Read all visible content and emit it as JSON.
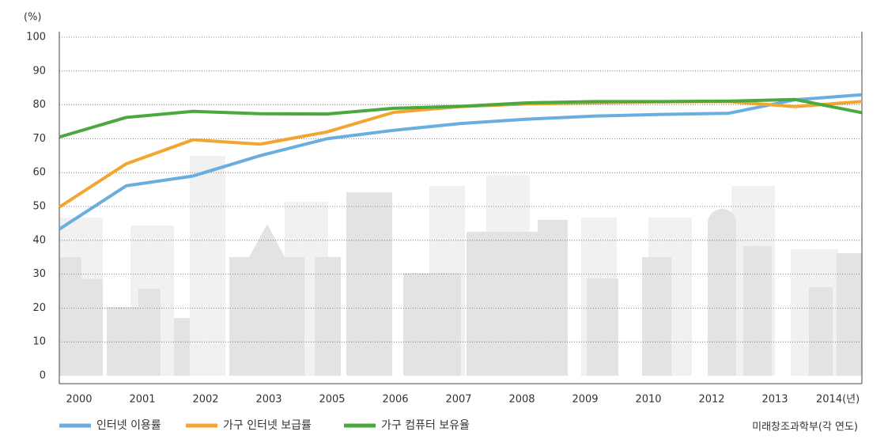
{
  "chart_data": {
    "type": "line",
    "y_label": "(%)",
    "categories": [
      "2000",
      "2001",
      "2002",
      "2003",
      "2005",
      "2006",
      "2007",
      "2008",
      "2009",
      "2010",
      "2012",
      "2013",
      "2014(년)"
    ],
    "series": [
      {
        "name": "인터넷 이용률",
        "color": "#6aaee0",
        "values": [
          43.3,
          56.1,
          59.0,
          65.0,
          70.0,
          72.5,
          74.5,
          75.8,
          76.7,
          77.2,
          77.5,
          81.5,
          83.0
        ]
      },
      {
        "name": "가구 인터넷 보급률",
        "color": "#f3a531",
        "values": [
          49.8,
          62.6,
          69.7,
          68.4,
          72.0,
          77.8,
          79.5,
          80.3,
          80.6,
          80.9,
          81.0,
          79.5,
          81.0
        ]
      },
      {
        "name": "가구 컴퓨터 보유율",
        "color": "#4aa83f",
        "values": [
          70.5,
          76.3,
          78.1,
          77.4,
          77.3,
          79.0,
          79.6,
          80.6,
          81.0,
          81.0,
          81.1,
          81.6,
          77.7
        ]
      }
    ],
    "ylim": [
      0,
      100
    ],
    "yticks": [
      0,
      10,
      20,
      30,
      40,
      50,
      60,
      70,
      80,
      90,
      100
    ],
    "grid": true,
    "source": "미래창조과학부(각 연도)"
  }
}
